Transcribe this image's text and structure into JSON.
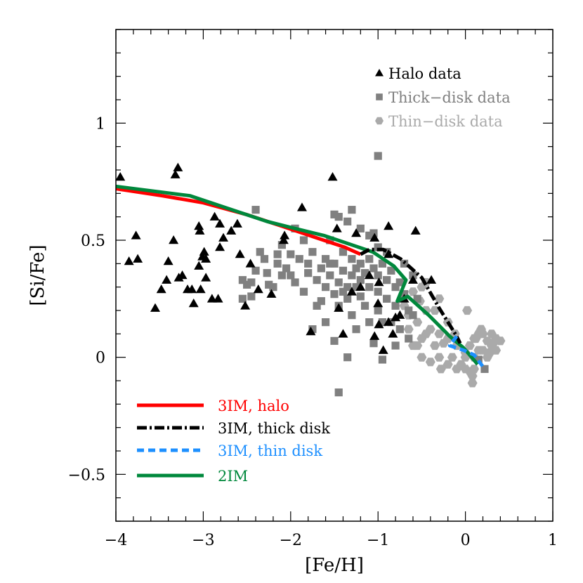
{
  "chart_data": {
    "type": "scatter",
    "title": "",
    "xlabel": "[Fe/H]",
    "ylabel": "[Si/Fe]",
    "xlim": [
      -4,
      1
    ],
    "ylim": [
      -0.7,
      1.4
    ],
    "x_ticks": [
      -4,
      -3,
      -2,
      -1,
      0,
      1
    ],
    "x_tick_labels": [
      "−4",
      "−3",
      "−2",
      "−1",
      "0",
      "1"
    ],
    "y_ticks": [
      -0.5,
      0,
      0.5,
      1
    ],
    "y_tick_labels": [
      "−0.5",
      "0",
      "0.5",
      "1"
    ],
    "grid": false,
    "scatter_legend_placement": "top-right",
    "line_legend_placement": "bottom-left",
    "scatter_series": [
      {
        "name": "Halo data",
        "marker": "triangle",
        "color": "#000000",
        "points": [
          [
            -3.95,
            0.77
          ],
          [
            -3.29,
            0.81
          ],
          [
            -3.32,
            0.78
          ],
          [
            -3.77,
            0.52
          ],
          [
            -3.85,
            0.41
          ],
          [
            -3.75,
            0.42
          ],
          [
            -3.55,
            0.21
          ],
          [
            -3.48,
            0.29
          ],
          [
            -3.42,
            0.33
          ],
          [
            -3.4,
            0.41
          ],
          [
            -3.34,
            0.5
          ],
          [
            -3.28,
            0.34
          ],
          [
            -3.24,
            0.35
          ],
          [
            -3.18,
            0.29
          ],
          [
            -3.13,
            0.29
          ],
          [
            -3.03,
            0.29
          ],
          [
            -3.11,
            0.23
          ],
          [
            -3.05,
            0.39
          ],
          [
            -2.99,
            0.45
          ],
          [
            -3.01,
            0.43
          ],
          [
            -2.97,
            0.42
          ],
          [
            -2.97,
            0.34
          ],
          [
            -3.05,
            0.56
          ],
          [
            -3.04,
            0.54
          ],
          [
            -2.9,
            0.25
          ],
          [
            -2.83,
            0.25
          ],
          [
            -2.87,
            0.6
          ],
          [
            -2.81,
            0.57
          ],
          [
            -2.77,
            0.51
          ],
          [
            -2.81,
            0.47
          ],
          [
            -2.68,
            0.54
          ],
          [
            -2.61,
            0.57
          ],
          [
            -2.58,
            0.44
          ],
          [
            -2.46,
            0.4
          ],
          [
            -2.52,
            0.22
          ],
          [
            -2.37,
            0.29
          ],
          [
            -2.22,
            0.27
          ],
          [
            -1.87,
            0.64
          ],
          [
            -1.52,
            0.77
          ],
          [
            -1.47,
            0.55
          ],
          [
            -2.07,
            0.52
          ],
          [
            -2.08,
            0.5
          ],
          [
            -1.77,
            0.11
          ],
          [
            -1.45,
            0.21
          ],
          [
            -1.4,
            0.1
          ],
          [
            -1.25,
            0.53
          ],
          [
            -1.04,
            0.51
          ],
          [
            -0.88,
            0.56
          ],
          [
            -0.57,
            0.54
          ],
          [
            -0.88,
            0.44
          ],
          [
            -0.39,
            0.33
          ],
          [
            -0.99,
            0.32
          ],
          [
            -1.04,
            0.09
          ],
          [
            -0.94,
            0.03
          ],
          [
            -0.83,
            0.1
          ],
          [
            -0.88,
            0.15
          ],
          [
            -0.99,
            0.14
          ],
          [
            -1.0,
            0.23
          ],
          [
            -0.8,
            0.17
          ],
          [
            -0.6,
            0.33
          ],
          [
            -1.2,
            0.3
          ],
          [
            -1.1,
            0.35
          ],
          [
            -0.7,
            0.25
          ],
          [
            -0.75,
            0.18
          ],
          [
            -1.3,
            0.28
          ]
        ]
      },
      {
        "name": "Thick−disk data",
        "marker": "square",
        "color": "#808080",
        "points": [
          [
            -2.55,
            0.33
          ],
          [
            -2.5,
            0.31
          ],
          [
            -2.55,
            0.25
          ],
          [
            -2.45,
            0.26
          ],
          [
            -2.35,
            0.45
          ],
          [
            -2.4,
            0.37
          ],
          [
            -2.27,
            0.36
          ],
          [
            -2.25,
            0.31
          ],
          [
            -2.2,
            0.3
          ],
          [
            -2.15,
            0.4
          ],
          [
            -2.1,
            0.48
          ],
          [
            -2.05,
            0.38
          ],
          [
            -2.0,
            0.35
          ],
          [
            -1.95,
            0.32
          ],
          [
            -1.9,
            0.42
          ],
          [
            -1.85,
            0.28
          ],
          [
            -1.8,
            0.36
          ],
          [
            -1.75,
            0.45
          ],
          [
            -1.7,
            0.33
          ],
          [
            -1.7,
            0.22
          ],
          [
            -1.65,
            0.38
          ],
          [
            -1.6,
            0.3
          ],
          [
            -1.6,
            0.42
          ],
          [
            -1.55,
            0.35
          ],
          [
            -1.5,
            0.27
          ],
          [
            -1.5,
            0.4
          ],
          [
            -1.45,
            0.32
          ],
          [
            -1.4,
            0.37
          ],
          [
            -1.4,
            0.45
          ],
          [
            -1.35,
            0.3
          ],
          [
            -1.35,
            0.25
          ],
          [
            -1.3,
            0.35
          ],
          [
            -1.3,
            0.42
          ],
          [
            -1.25,
            0.38
          ],
          [
            -1.25,
            0.3
          ],
          [
            -1.2,
            0.33
          ],
          [
            -1.2,
            0.4
          ],
          [
            -1.15,
            0.36
          ],
          [
            -1.1,
            0.42
          ],
          [
            -1.1,
            0.3
          ],
          [
            -1.05,
            0.38
          ],
          [
            -1.0,
            0.35
          ],
          [
            -1.0,
            0.28
          ],
          [
            -0.95,
            0.4
          ],
          [
            -0.9,
            0.33
          ],
          [
            -0.9,
            0.25
          ],
          [
            -0.85,
            0.37
          ],
          [
            -0.8,
            0.3
          ],
          [
            -0.8,
            0.22
          ],
          [
            -0.75,
            0.32
          ],
          [
            -0.7,
            0.27
          ],
          [
            -0.65,
            0.2
          ],
          [
            -0.6,
            0.18
          ],
          [
            -0.75,
            0.12
          ],
          [
            -0.85,
            0.15
          ],
          [
            -1.0,
            0.2
          ],
          [
            -1.15,
            0.22
          ],
          [
            -1.3,
            0.18
          ],
          [
            -1.45,
            0.22
          ],
          [
            -1.6,
            0.15
          ],
          [
            -1.75,
            0.12
          ],
          [
            -2.3,
            0.42
          ],
          [
            -2.45,
            0.32
          ],
          [
            -2.0,
            0.44
          ],
          [
            -1.85,
            0.5
          ],
          [
            -1.55,
            0.5
          ],
          [
            -1.5,
            0.61
          ],
          [
            -1.45,
            0.6
          ],
          [
            -1.3,
            0.63
          ],
          [
            -1.35,
            0.58
          ],
          [
            -1.2,
            0.55
          ],
          [
            -1.1,
            0.52
          ],
          [
            -1.05,
            0.53
          ],
          [
            -1.0,
            0.47
          ],
          [
            -0.9,
            0.45
          ],
          [
            -2.4,
            0.63
          ],
          [
            -2.15,
            0.44
          ],
          [
            -1.95,
            0.55
          ],
          [
            -1.0,
            0.86
          ],
          [
            -1.45,
            -0.15
          ],
          [
            -1.5,
            0.07
          ],
          [
            -1.35,
            0.0
          ],
          [
            -1.05,
            0.06
          ],
          [
            -0.95,
            -0.01
          ],
          [
            -0.8,
            0.05
          ],
          [
            -0.65,
            0.08
          ],
          [
            0.22,
            -0.05
          ],
          [
            0.15,
            -0.01
          ],
          [
            -1.65,
            0.24
          ],
          [
            -1.25,
            0.12
          ],
          [
            -0.55,
            0.25
          ],
          [
            -0.95,
            0.15
          ],
          [
            -1.1,
            0.15
          ],
          [
            -1.2,
            0.26
          ],
          [
            -1.4,
            0.28
          ],
          [
            -1.55,
            0.4
          ],
          [
            -1.8,
            0.4
          ],
          [
            -2.1,
            0.35
          ],
          [
            -0.7,
            0.4
          ],
          [
            -0.6,
            0.35
          ]
        ]
      },
      {
        "name": "Thin−disk data",
        "marker": "hexagon",
        "color": "#aaaaaa",
        "points": [
          [
            -0.7,
            0.22
          ],
          [
            -0.6,
            0.28
          ],
          [
            -0.5,
            0.3
          ],
          [
            -0.45,
            0.2
          ],
          [
            -0.55,
            0.15
          ],
          [
            -0.65,
            0.12
          ],
          [
            -0.6,
            0.05
          ],
          [
            -0.5,
            0.08
          ],
          [
            -0.4,
            0.12
          ],
          [
            -0.35,
            0.05
          ],
          [
            -0.3,
            0.0
          ],
          [
            -0.4,
            -0.02
          ],
          [
            -0.5,
            0.0
          ],
          [
            -0.45,
            0.1
          ],
          [
            -0.3,
            0.1
          ],
          [
            -0.2,
            0.15
          ],
          [
            -0.25,
            0.06
          ],
          [
            -0.15,
            0.0
          ],
          [
            -0.1,
            0.05
          ],
          [
            -0.2,
            -0.03
          ],
          [
            -0.1,
            -0.05
          ],
          [
            0,
            0
          ],
          [
            0.05,
            0.05
          ],
          [
            0.1,
            0.08
          ],
          [
            0.15,
            0.1
          ],
          [
            0.2,
            0.1
          ],
          [
            0.25,
            0.07
          ],
          [
            0.3,
            0.05
          ],
          [
            0.35,
            0.08
          ],
          [
            0.4,
            0.07
          ],
          [
            0.3,
            0.1
          ],
          [
            0.2,
            0.03
          ],
          [
            0.1,
            0.0
          ],
          [
            0,
            -0.05
          ],
          [
            -0.05,
            -0.03
          ],
          [
            0.05,
            -0.06
          ],
          [
            0.1,
            -0.05
          ],
          [
            0.15,
            0.03
          ],
          [
            0.25,
            0.0
          ],
          [
            0.35,
            0.03
          ],
          [
            -0.3,
            0.25
          ],
          [
            -0.35,
            0.2
          ],
          [
            0.02,
            0.2
          ],
          [
            0.08,
            -0.08
          ],
          [
            0.08,
            -0.11
          ],
          [
            -0.28,
            -0.05
          ],
          [
            -0.55,
            0.05
          ],
          [
            -0.65,
            0.18
          ],
          [
            -0.52,
            0.24
          ],
          [
            -0.12,
            0.1
          ],
          [
            0.18,
            0.12
          ],
          [
            -0.45,
            0.32
          ],
          [
            0.0,
            0.02
          ],
          [
            -0.2,
            0.08
          ],
          [
            0.28,
            0.02
          ],
          [
            0.12,
            0.08
          ],
          [
            0.32,
            0.06
          ]
        ]
      }
    ],
    "line_series": [
      {
        "name": "3IM, halo",
        "style": "solid",
        "color": "#ff0000",
        "points": [
          [
            -4,
            0.72
          ],
          [
            -3.47,
            0.69
          ],
          [
            -3,
            0.66
          ],
          [
            -2.51,
            0.61
          ],
          [
            -2.1,
            0.56
          ],
          [
            -1.7,
            0.51
          ],
          [
            -1.38,
            0.47
          ],
          [
            -1.2,
            0.44
          ]
        ]
      },
      {
        "name": "3IM, thick disk",
        "style": "dash-dot",
        "color": "#000000",
        "points": [
          [
            -1.2,
            0.44
          ],
          [
            -1.1,
            0.46
          ],
          [
            -0.94,
            0.46
          ],
          [
            -0.74,
            0.42
          ],
          [
            -0.5,
            0.34
          ],
          [
            -0.3,
            0.21
          ],
          [
            -0.1,
            0.09
          ],
          [
            -0.06,
            0.06
          ]
        ]
      },
      {
        "name": "3IM, thin disk",
        "style": "dashed",
        "color": "#1e90ff",
        "points": [
          [
            -0.1,
            0.09
          ],
          [
            -0.18,
            0.05
          ],
          [
            -0.02,
            0.03
          ],
          [
            0.1,
            0.01
          ],
          [
            0.22,
            -0.05
          ]
        ]
      },
      {
        "name": "2IM",
        "style": "solid",
        "color": "#00883c",
        "points": [
          [
            -4,
            0.73
          ],
          [
            -3.15,
            0.69
          ],
          [
            -2.67,
            0.63
          ],
          [
            -2.27,
            0.58
          ],
          [
            -1.95,
            0.55
          ],
          [
            -1.62,
            0.52
          ],
          [
            -1.38,
            0.49
          ],
          [
            -1.22,
            0.47
          ],
          [
            -1.06,
            0.45
          ],
          [
            -0.82,
            0.39
          ],
          [
            -0.68,
            0.33
          ],
          [
            -0.78,
            0.24
          ],
          [
            -0.66,
            0.26
          ],
          [
            -0.42,
            0.18
          ],
          [
            -0.18,
            0.09
          ],
          [
            -0.02,
            0.04
          ],
          [
            0.14,
            -0.03
          ]
        ]
      }
    ]
  }
}
